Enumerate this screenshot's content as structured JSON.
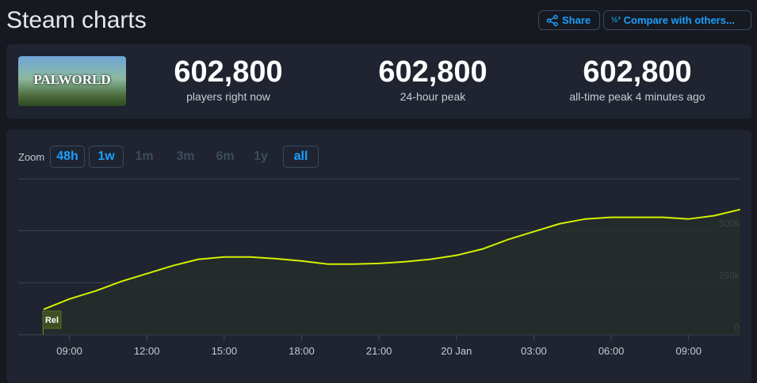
{
  "header": {
    "title": "Steam charts",
    "share_label": "Share",
    "compare_label": "Compare with others..."
  },
  "game": {
    "logo_text": "PALWORLD"
  },
  "stats": [
    {
      "value": "602,800",
      "label": "players right now"
    },
    {
      "value": "602,800",
      "label": "24-hour peak"
    },
    {
      "value": "602,800",
      "label": "all-time peak 4 minutes ago"
    }
  ],
  "zoom": {
    "label": "Zoom",
    "options": [
      {
        "label": "48h",
        "enabled": true
      },
      {
        "label": "1w",
        "enabled": true
      },
      {
        "label": "1m",
        "enabled": false
      },
      {
        "label": "3m",
        "enabled": false
      },
      {
        "label": "6m",
        "enabled": false
      },
      {
        "label": "1y",
        "enabled": false
      },
      {
        "label": "all",
        "enabled": true
      }
    ]
  },
  "colors": {
    "line": "#d4f000",
    "accent": "#1a9fff"
  },
  "chart_data": {
    "type": "area",
    "x_start": "19 Jan 08:00",
    "x_step": "1 hour",
    "x_tick_labels": [
      "09:00",
      "12:00",
      "15:00",
      "18:00",
      "21:00",
      "20 Jan",
      "03:00",
      "06:00",
      "09:00"
    ],
    "y_tick_labels": [
      "0",
      "250k",
      "500k"
    ],
    "ylim": [
      0,
      750000
    ],
    "grid": true,
    "annotation": "Rel",
    "values": [
      122000,
      172000,
      210000,
      256000,
      294000,
      332000,
      363000,
      374000,
      374000,
      366000,
      355000,
      340000,
      340000,
      343000,
      351000,
      363000,
      382000,
      412000,
      458000,
      496000,
      534000,
      557000,
      565000,
      565000,
      565000,
      557000,
      573000,
      602800
    ]
  }
}
